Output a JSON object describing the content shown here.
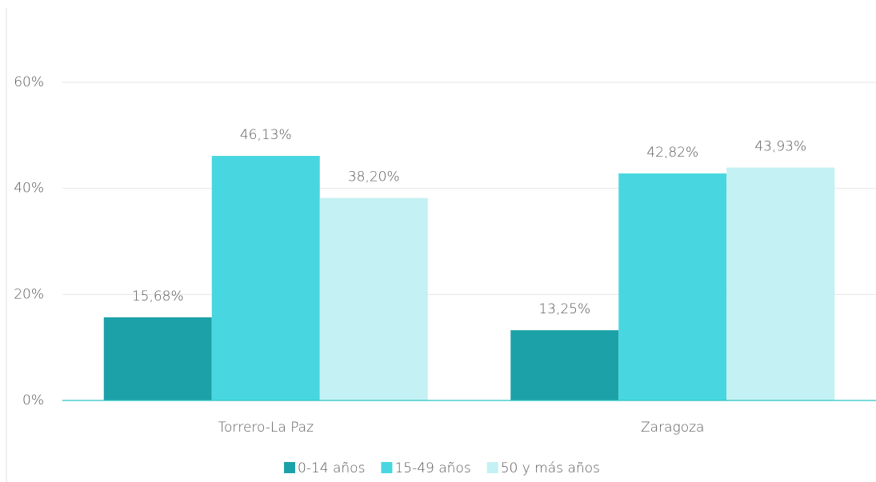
{
  "chart_data": {
    "type": "bar",
    "categories": [
      "Torrero-La Paz",
      "Zaragoza"
    ],
    "series": [
      {
        "name": "0-14 años",
        "color": "#1da1a8",
        "values": [
          15.68,
          13.25
        ],
        "value_labels": [
          "15,68%",
          "13,25%"
        ]
      },
      {
        "name": "15-49 años",
        "color": "#48d7e0",
        "values": [
          46.13,
          42.82
        ],
        "value_labels": [
          "46,13%",
          "42,82%"
        ]
      },
      {
        "name": "50 y más años",
        "color": "#c4f1f3",
        "values": [
          38.2,
          43.93
        ],
        "value_labels": [
          "38,20%",
          "43,93%"
        ]
      }
    ],
    "ylim": [
      0,
      70
    ],
    "yticks": [
      {
        "value": 0,
        "label": "0%"
      },
      {
        "value": 20,
        "label": "20%"
      },
      {
        "value": 40,
        "label": "40%"
      },
      {
        "value": 60,
        "label": "60%"
      }
    ],
    "grid": true,
    "legend": "bottom"
  }
}
